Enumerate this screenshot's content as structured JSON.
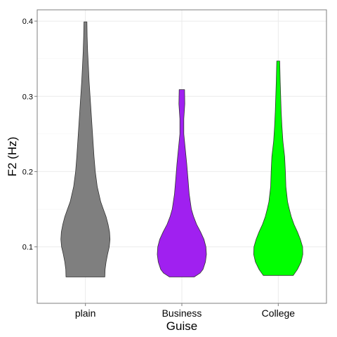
{
  "chart_data": {
    "type": "violin",
    "title": "",
    "xlabel": "Guise",
    "ylabel": "F2 (Hz)",
    "ylim": [
      0.025,
      0.415
    ],
    "grid": true,
    "legend": "none",
    "y_ticks": [
      0.1,
      0.2,
      0.3,
      0.4
    ],
    "y_tick_labels": [
      "0.1",
      "0.2",
      "0.3",
      "0.4"
    ],
    "categories": [
      "plain",
      "Business",
      "College"
    ],
    "series": [
      {
        "category": "plain",
        "color": "#7f7f7f",
        "min": 0.06,
        "max": 0.399,
        "density": [
          [
            0.06,
            0.79
          ],
          [
            0.07,
            0.8
          ],
          [
            0.08,
            0.84
          ],
          [
            0.09,
            0.9
          ],
          [
            0.1,
            0.97
          ],
          [
            0.11,
            1.0
          ],
          [
            0.12,
            0.98
          ],
          [
            0.13,
            0.92
          ],
          [
            0.14,
            0.84
          ],
          [
            0.15,
            0.73
          ],
          [
            0.16,
            0.62
          ],
          [
            0.18,
            0.48
          ],
          [
            0.2,
            0.4
          ],
          [
            0.22,
            0.35
          ],
          [
            0.24,
            0.31
          ],
          [
            0.26,
            0.27
          ],
          [
            0.28,
            0.23
          ],
          [
            0.3,
            0.19
          ],
          [
            0.32,
            0.15
          ],
          [
            0.34,
            0.12
          ],
          [
            0.36,
            0.09
          ],
          [
            0.38,
            0.07
          ],
          [
            0.399,
            0.06
          ]
        ]
      },
      {
        "category": "Business",
        "color": "#a020f0",
        "min": 0.06,
        "max": 0.309,
        "density": [
          [
            0.06,
            0.5
          ],
          [
            0.065,
            0.74
          ],
          [
            0.07,
            0.86
          ],
          [
            0.08,
            0.96
          ],
          [
            0.09,
            1.0
          ],
          [
            0.1,
            0.98
          ],
          [
            0.11,
            0.9
          ],
          [
            0.12,
            0.76
          ],
          [
            0.13,
            0.6
          ],
          [
            0.14,
            0.48
          ],
          [
            0.15,
            0.39
          ],
          [
            0.17,
            0.3
          ],
          [
            0.19,
            0.25
          ],
          [
            0.21,
            0.2
          ],
          [
            0.23,
            0.14
          ],
          [
            0.25,
            0.08
          ],
          [
            0.27,
            0.08
          ],
          [
            0.29,
            0.12
          ],
          [
            0.309,
            0.11
          ]
        ]
      },
      {
        "category": "College",
        "color": "#00ff00",
        "min": 0.062,
        "max": 0.347,
        "density": [
          [
            0.062,
            0.61
          ],
          [
            0.07,
            0.78
          ],
          [
            0.08,
            0.93
          ],
          [
            0.09,
            1.0
          ],
          [
            0.1,
            0.99
          ],
          [
            0.11,
            0.9
          ],
          [
            0.12,
            0.78
          ],
          [
            0.13,
            0.64
          ],
          [
            0.14,
            0.53
          ],
          [
            0.15,
            0.45
          ],
          [
            0.16,
            0.38
          ],
          [
            0.18,
            0.31
          ],
          [
            0.2,
            0.29
          ],
          [
            0.22,
            0.26
          ],
          [
            0.24,
            0.19
          ],
          [
            0.26,
            0.15
          ],
          [
            0.28,
            0.12
          ],
          [
            0.3,
            0.1
          ],
          [
            0.32,
            0.08
          ],
          [
            0.347,
            0.06
          ]
        ]
      }
    ]
  }
}
